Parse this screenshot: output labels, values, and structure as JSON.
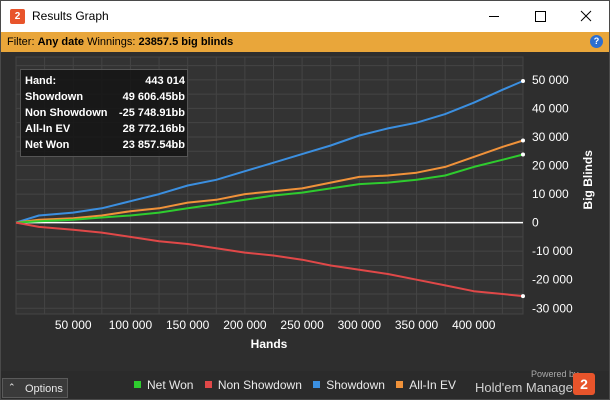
{
  "window": {
    "title": "Results Graph"
  },
  "filter": {
    "label": "Filter:",
    "value": "Any date",
    "winnings_label": "Winnings:",
    "winnings_value": "23857.5 big blinds"
  },
  "tooltip": {
    "rows": [
      {
        "label": "Hand:",
        "value": "443 014"
      },
      {
        "label": "Showdown",
        "value": "49 606.45bb"
      },
      {
        "label": "Non Showdown",
        "value": "-25 748.91bb"
      },
      {
        "label": "All-In EV",
        "value": "28 772.16bb"
      },
      {
        "label": "Net Won",
        "value": "23 857.54bb"
      }
    ]
  },
  "options": {
    "label": "Options"
  },
  "legend": [
    {
      "name": "Net Won",
      "color": "#2ecc2e"
    },
    {
      "name": "Non Showdown",
      "color": "#e04848"
    },
    {
      "name": "Showdown",
      "color": "#3b8fe0"
    },
    {
      "name": "All-In EV",
      "color": "#f0923a"
    }
  ],
  "branding": {
    "powered_by": "Powered by",
    "name": "Hold'em Manager",
    "logo_text": "2"
  },
  "icons": {
    "app": "hem2-logo-icon",
    "help": "help-icon"
  },
  "chart_data": {
    "type": "line",
    "xlabel": "Hands",
    "ylabel": "Big Blinds",
    "xlim": [
      0,
      443014
    ],
    "ylim": [
      -32000,
      58000
    ],
    "xticks": [
      50000,
      100000,
      150000,
      200000,
      250000,
      300000,
      350000,
      400000
    ],
    "xtick_labels": [
      "50 000",
      "100 000",
      "150 000",
      "200 000",
      "250 000",
      "300 000",
      "350 000",
      "400 000"
    ],
    "yticks": [
      50000,
      40000,
      30000,
      20000,
      10000,
      0,
      -10000,
      -20000,
      -30000
    ],
    "ytick_labels": [
      "50 000",
      "40 000",
      "30 000",
      "20 000",
      "10 000",
      "0",
      "-10 000",
      "-20 000",
      "-30 000"
    ],
    "grid": true,
    "series": [
      {
        "name": "Showdown",
        "color": "#3b8fe0",
        "x": [
          0,
          20000,
          50000,
          75000,
          100000,
          125000,
          150000,
          175000,
          200000,
          225000,
          250000,
          275000,
          300000,
          325000,
          350000,
          375000,
          400000,
          425000,
          443014
        ],
        "y": [
          0,
          2500,
          3500,
          5000,
          7500,
          10000,
          13000,
          15000,
          18000,
          21000,
          24000,
          27000,
          30500,
          33000,
          35000,
          38000,
          42000,
          46500,
          49606
        ]
      },
      {
        "name": "All-In EV",
        "color": "#f0923a",
        "x": [
          0,
          20000,
          50000,
          75000,
          100000,
          125000,
          150000,
          175000,
          200000,
          225000,
          250000,
          275000,
          300000,
          325000,
          350000,
          375000,
          400000,
          425000,
          443014
        ],
        "y": [
          0,
          1000,
          1500,
          2500,
          4000,
          5000,
          7000,
          8000,
          10000,
          11000,
          12000,
          14000,
          16000,
          16500,
          17500,
          19500,
          23000,
          26500,
          28772
        ]
      },
      {
        "name": "Net Won",
        "color": "#2ecc2e",
        "x": [
          0,
          20000,
          50000,
          75000,
          100000,
          125000,
          150000,
          175000,
          200000,
          225000,
          250000,
          275000,
          300000,
          325000,
          350000,
          375000,
          400000,
          425000,
          443014
        ],
        "y": [
          0,
          500,
          1000,
          1800,
          2500,
          3500,
          5000,
          6500,
          8000,
          9500,
          10500,
          12000,
          13500,
          14000,
          15000,
          16500,
          19500,
          22000,
          23858
        ]
      },
      {
        "name": "Non Showdown",
        "color": "#e04848",
        "x": [
          0,
          20000,
          50000,
          75000,
          100000,
          125000,
          150000,
          175000,
          200000,
          225000,
          250000,
          275000,
          300000,
          325000,
          350000,
          375000,
          400000,
          425000,
          443014
        ],
        "y": [
          0,
          -1500,
          -2500,
          -3500,
          -5000,
          -6500,
          -7500,
          -9000,
          -10500,
          -11500,
          -13000,
          -15000,
          -16500,
          -18000,
          -20000,
          -22000,
          -24000,
          -25000,
          -25749
        ]
      }
    ]
  }
}
